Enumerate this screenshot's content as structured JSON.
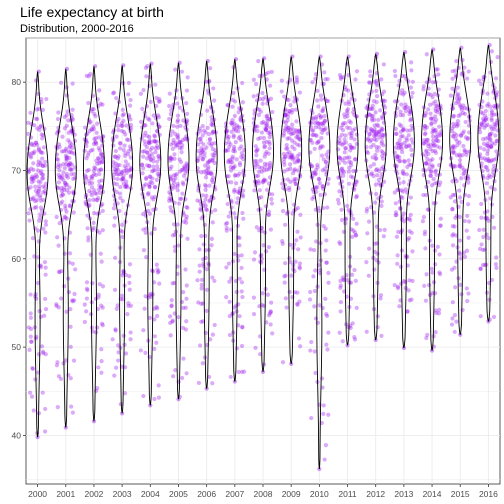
{
  "title": "Life expectancy at birth",
  "subtitle": "Distribution, 2000-2016",
  "chart_data": {
    "type": "violin",
    "title": "Life expectancy at birth",
    "subtitle": "Distribution, 2000-2016",
    "xlabel": "",
    "ylabel": "",
    "ylim": [
      34.5,
      85
    ],
    "yticks": [
      40,
      50,
      60,
      70,
      80
    ],
    "grid": true,
    "point_color": "#a020f0",
    "violin_stroke": "#000000",
    "categories": [
      "2000",
      "2001",
      "2002",
      "2003",
      "2004",
      "2005",
      "2006",
      "2007",
      "2008",
      "2009",
      "2010",
      "2011",
      "2012",
      "2013",
      "2014",
      "2015",
      "2016"
    ],
    "series": [
      {
        "year": "2000",
        "min": 39.8,
        "max": 81.2,
        "median": 69.5
      },
      {
        "year": "2001",
        "min": 40.9,
        "max": 81.5,
        "median": 69.8
      },
      {
        "year": "2002",
        "min": 41.6,
        "max": 81.8,
        "median": 70.1
      },
      {
        "year": "2003",
        "min": 42.5,
        "max": 81.9,
        "median": 70.4
      },
      {
        "year": "2004",
        "min": 43.4,
        "max": 82.1,
        "median": 70.7
      },
      {
        "year": "2005",
        "min": 44.1,
        "max": 82.2,
        "median": 71.0
      },
      {
        "year": "2006",
        "min": 45.3,
        "max": 82.4,
        "median": 71.3
      },
      {
        "year": "2007",
        "min": 46.1,
        "max": 82.6,
        "median": 71.6
      },
      {
        "year": "2008",
        "min": 47.2,
        "max": 82.7,
        "median": 71.9
      },
      {
        "year": "2009",
        "min": 48.1,
        "max": 82.9,
        "median": 72.1
      },
      {
        "year": "2010",
        "min": 36.2,
        "max": 82.9,
        "median": 72.3
      },
      {
        "year": "2011",
        "min": 50.2,
        "max": 82.9,
        "median": 72.6
      },
      {
        "year": "2012",
        "min": 50.8,
        "max": 83.2,
        "median": 72.8
      },
      {
        "year": "2013",
        "min": 49.9,
        "max": 83.4,
        "median": 73.0
      },
      {
        "year": "2014",
        "min": 49.6,
        "max": 83.7,
        "median": 73.2
      },
      {
        "year": "2015",
        "min": 51.4,
        "max": 83.9,
        "median": 73.4
      },
      {
        "year": "2016",
        "min": 52.9,
        "max": 84.2,
        "median": 73.6
      }
    ]
  }
}
